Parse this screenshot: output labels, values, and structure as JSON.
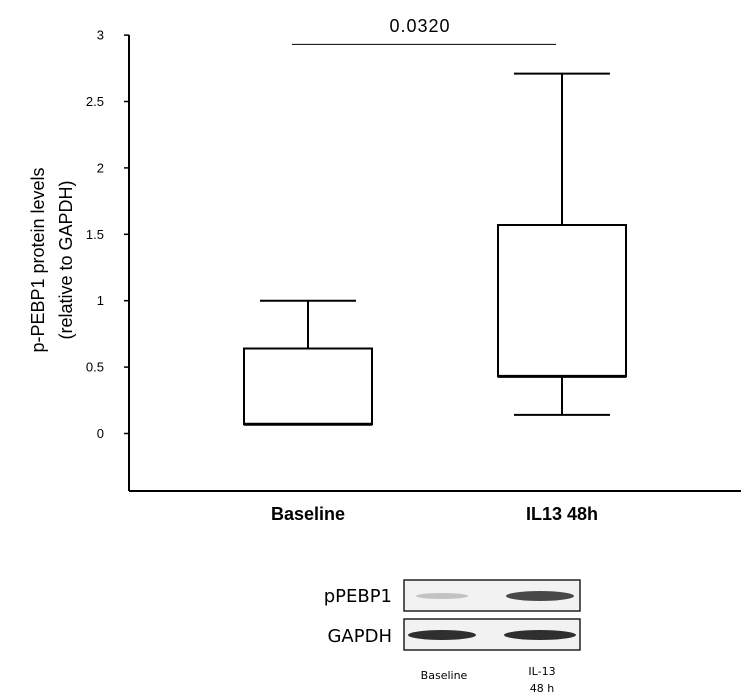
{
  "chart_data": {
    "type": "box",
    "ylabel_line1": "p-PEBP1  protein levels",
    "ylabel_line2": "(relative to GAPDH)",
    "ylim": [
      -0.42,
      3
    ],
    "yticks": [
      0,
      0.5,
      1,
      1.5,
      2,
      2.5,
      3
    ],
    "yticklabels": [
      "0",
      "0.5",
      "1",
      "1.5",
      "2",
      "2.5",
      "3"
    ],
    "categories": [
      "Baseline",
      "IL13 48h"
    ],
    "boxes": [
      {
        "category": "Baseline",
        "min": 0.07,
        "q1": 0.07,
        "median": 0.07,
        "q3": 0.64,
        "max": 1.0
      },
      {
        "category": "IL13 48h",
        "min": 0.14,
        "q1": 0.43,
        "median": 0.43,
        "q3": 1.57,
        "max": 2.71
      }
    ],
    "significance": {
      "label": "0.0320",
      "y": 2.93
    }
  },
  "blot": {
    "rows": [
      "pPEBP1",
      "GAPDH"
    ],
    "lanes": [
      "Baseline",
      "IL-13\n48 h"
    ],
    "lane1_caption": "Baseline",
    "lane2_caption_line1": "IL-13",
    "lane2_caption_line2": "48 h"
  }
}
